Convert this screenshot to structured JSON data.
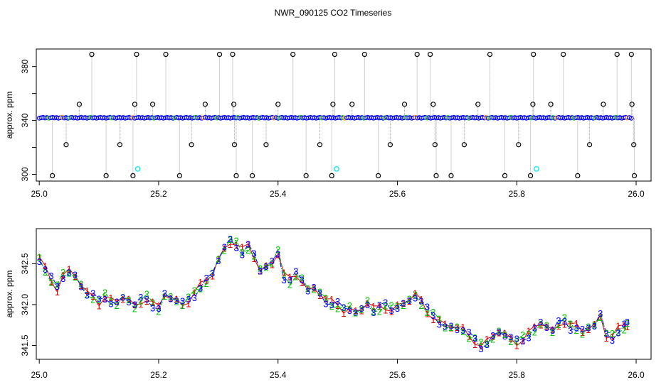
{
  "figure_title": "NWR_090125  CO2 Timeseries",
  "colors": {
    "axis": "#000000",
    "drop_line": "#a0a0a0",
    "outlier_marker": "#000000",
    "main_marker": "#0000ff",
    "alt_marker_green": "#00c000",
    "alt_marker_orange": "#ff8c00",
    "cyan_marker": "#00e5ee",
    "series_1": "#e00000",
    "series_2": "#00c000",
    "series_3": "#0000ff"
  },
  "chart_data": [
    {
      "type": "scatter",
      "title": "NWR_090125  CO2 Timeseries",
      "xlabel": "",
      "ylabel": "approx. ppm",
      "xlim": [
        24.995,
        26.025
      ],
      "ylim": [
        295,
        393
      ],
      "xticks": [
        "25.0",
        "25.2",
        "25.4",
        "25.6",
        "25.8",
        "26.0"
      ],
      "xtick_values": [
        25.0,
        25.2,
        25.4,
        25.6,
        25.8,
        26.0
      ],
      "yticks": [
        "300",
        "340",
        "380"
      ],
      "ytick_values": [
        300,
        340,
        380
      ],
      "baseline": {
        "x_start": 25.0,
        "x_end": 25.995,
        "y": 342,
        "note_visible": false
      },
      "cyan_points": [
        {
          "x": 25.165,
          "y": 304
        },
        {
          "x": 25.498,
          "y": 304
        },
        {
          "x": 25.833,
          "y": 304
        }
      ],
      "outlier_points": [
        {
          "x": 25.088,
          "y": 389
        },
        {
          "x": 25.163,
          "y": 389
        },
        {
          "x": 25.212,
          "y": 389
        },
        {
          "x": 25.302,
          "y": 389
        },
        {
          "x": 25.324,
          "y": 389
        },
        {
          "x": 25.425,
          "y": 389
        },
        {
          "x": 25.495,
          "y": 389
        },
        {
          "x": 25.545,
          "y": 389
        },
        {
          "x": 25.633,
          "y": 389
        },
        {
          "x": 25.655,
          "y": 389
        },
        {
          "x": 25.755,
          "y": 389
        },
        {
          "x": 25.828,
          "y": 389
        },
        {
          "x": 25.878,
          "y": 389
        },
        {
          "x": 25.968,
          "y": 389
        },
        {
          "x": 25.992,
          "y": 389
        },
        {
          "x": 25.067,
          "y": 352
        },
        {
          "x": 25.16,
          "y": 352
        },
        {
          "x": 25.19,
          "y": 352
        },
        {
          "x": 25.278,
          "y": 352
        },
        {
          "x": 25.326,
          "y": 352
        },
        {
          "x": 25.4,
          "y": 352
        },
        {
          "x": 25.492,
          "y": 352
        },
        {
          "x": 25.524,
          "y": 352
        },
        {
          "x": 25.612,
          "y": 352
        },
        {
          "x": 25.66,
          "y": 352
        },
        {
          "x": 25.735,
          "y": 352
        },
        {
          "x": 25.827,
          "y": 352
        },
        {
          "x": 25.857,
          "y": 352
        },
        {
          "x": 25.945,
          "y": 352
        },
        {
          "x": 25.993,
          "y": 352
        },
        {
          "x": 25.045,
          "y": 322
        },
        {
          "x": 25.135,
          "y": 322
        },
        {
          "x": 25.255,
          "y": 322
        },
        {
          "x": 25.327,
          "y": 322
        },
        {
          "x": 25.38,
          "y": 322
        },
        {
          "x": 25.47,
          "y": 322
        },
        {
          "x": 25.588,
          "y": 322
        },
        {
          "x": 25.663,
          "y": 322
        },
        {
          "x": 25.712,
          "y": 322
        },
        {
          "x": 25.803,
          "y": 322
        },
        {
          "x": 25.922,
          "y": 322
        },
        {
          "x": 25.996,
          "y": 322
        },
        {
          "x": 25.022,
          "y": 299
        },
        {
          "x": 25.112,
          "y": 299
        },
        {
          "x": 25.157,
          "y": 299
        },
        {
          "x": 25.235,
          "y": 299
        },
        {
          "x": 25.33,
          "y": 299
        },
        {
          "x": 25.357,
          "y": 299
        },
        {
          "x": 25.447,
          "y": 299
        },
        {
          "x": 25.49,
          "y": 299
        },
        {
          "x": 25.568,
          "y": 299
        },
        {
          "x": 25.665,
          "y": 299
        },
        {
          "x": 25.69,
          "y": 299
        },
        {
          "x": 25.78,
          "y": 299
        },
        {
          "x": 25.823,
          "y": 299
        },
        {
          "x": 25.902,
          "y": 299
        },
        {
          "x": 25.997,
          "y": 299
        }
      ]
    },
    {
      "type": "line",
      "title": "",
      "xlabel": "",
      "ylabel": "approx. ppm",
      "xlim": [
        24.995,
        26.025
      ],
      "ylim": [
        341.33,
        342.93
      ],
      "xticks": [
        "25.0",
        "25.2",
        "25.4",
        "25.6",
        "25.8",
        "26.0"
      ],
      "xtick_values": [
        25.0,
        25.2,
        25.4,
        25.6,
        25.8,
        26.0
      ],
      "yticks": [
        "341.5",
        "342.0",
        "342.5"
      ],
      "ytick_values": [
        341.5,
        342.0,
        342.5
      ],
      "series": [
        {
          "marker": "1",
          "line_style": "solid"
        },
        {
          "marker": "2",
          "line_style": "dashed"
        },
        {
          "marker": "3",
          "line_style": "dotdash"
        }
      ],
      "x": [
        25.0,
        25.01,
        25.02,
        25.03,
        25.04,
        25.05,
        25.06,
        25.07,
        25.08,
        25.09,
        25.1,
        25.11,
        25.12,
        25.13,
        25.14,
        25.15,
        25.16,
        25.17,
        25.18,
        25.19,
        25.2,
        25.21,
        25.22,
        25.23,
        25.24,
        25.25,
        25.26,
        25.27,
        25.28,
        25.29,
        25.3,
        25.31,
        25.32,
        25.33,
        25.34,
        25.35,
        25.36,
        25.37,
        25.38,
        25.39,
        25.4,
        25.41,
        25.42,
        25.43,
        25.44,
        25.45,
        25.46,
        25.47,
        25.48,
        25.49,
        25.5,
        25.51,
        25.52,
        25.53,
        25.54,
        25.55,
        25.56,
        25.57,
        25.58,
        25.59,
        25.6,
        25.61,
        25.62,
        25.63,
        25.64,
        25.65,
        25.66,
        25.67,
        25.68,
        25.69,
        25.7,
        25.71,
        25.72,
        25.73,
        25.74,
        25.75,
        25.76,
        25.77,
        25.78,
        25.79,
        25.8,
        25.81,
        25.82,
        25.83,
        25.84,
        25.85,
        25.86,
        25.87,
        25.88,
        25.89,
        25.9,
        25.91,
        25.92,
        25.93,
        25.94,
        25.95,
        25.96,
        25.97,
        25.98,
        25.985
      ],
      "y": [
        342.55,
        342.42,
        342.3,
        342.22,
        342.38,
        342.42,
        342.35,
        342.22,
        342.12,
        342.1,
        342.05,
        342.12,
        342.06,
        342.02,
        342.07,
        342.04,
        341.98,
        342.06,
        342.1,
        342.02,
        341.95,
        342.1,
        342.07,
        342.05,
        342.02,
        342.08,
        342.15,
        342.22,
        342.28,
        342.36,
        342.55,
        342.7,
        342.8,
        342.75,
        342.65,
        342.7,
        342.58,
        342.42,
        342.48,
        342.53,
        342.65,
        342.35,
        342.28,
        342.35,
        342.3,
        342.2,
        342.22,
        342.15,
        342.05,
        342.0,
        341.98,
        341.94,
        341.97,
        341.93,
        341.95,
        342.02,
        341.92,
        341.95,
        341.98,
        341.96,
        342.0,
        342.02,
        342.05,
        342.1,
        342.02,
        341.92,
        341.88,
        341.82,
        341.75,
        341.72,
        341.7,
        341.68,
        341.62,
        341.58,
        341.52,
        341.55,
        341.6,
        341.65,
        341.62,
        341.58,
        341.56,
        341.6,
        341.65,
        341.7,
        341.75,
        341.72,
        341.68,
        341.78,
        341.82,
        341.75,
        341.72,
        341.65,
        341.7,
        341.75,
        341.88,
        341.65,
        341.62,
        341.68,
        341.72,
        341.75
      ]
    }
  ]
}
